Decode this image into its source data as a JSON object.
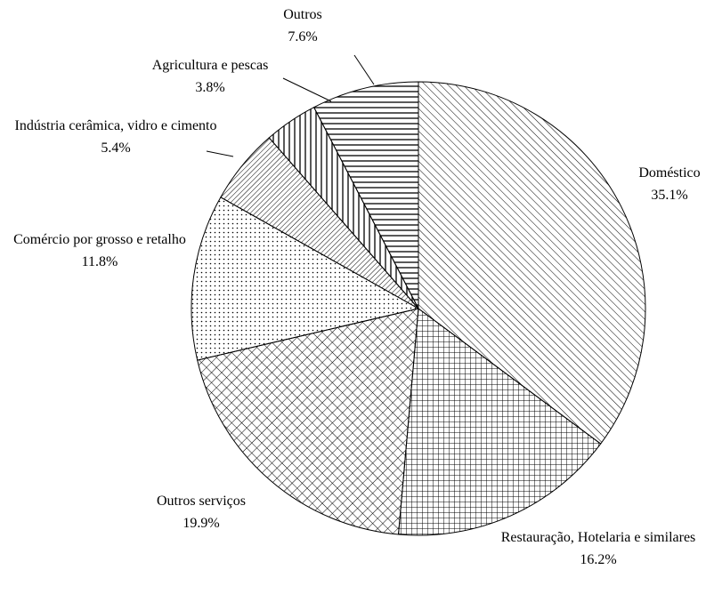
{
  "chart_data": {
    "type": "pie",
    "categories": [
      "Doméstico",
      "Restauração, Hotelaria e similares",
      "Outros serviços",
      "Comércio por grosso e retalho",
      "Indústria cerâmica, vidro e cimento",
      "Agricultura e pescas",
      "Outros"
    ],
    "values": [
      35.1,
      16.2,
      19.9,
      11.8,
      5.4,
      3.8,
      7.6
    ],
    "value_labels": [
      "35.1%",
      "16.2%",
      "19.9%",
      "11.8%",
      "5.4%",
      "3.8%",
      "7.6%"
    ]
  }
}
